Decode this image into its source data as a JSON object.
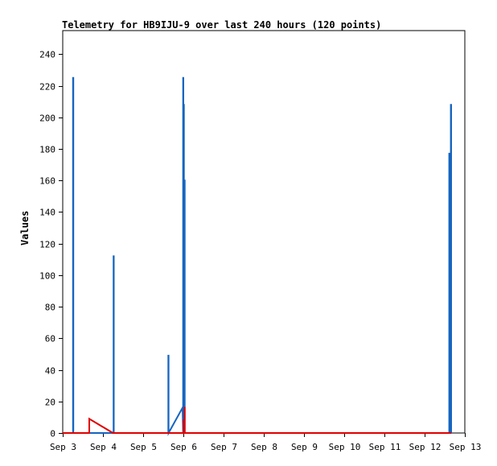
{
  "chart_data": {
    "type": "line",
    "title": "Telemetry for HB9IJU-9 over last 240 hours (120 points)",
    "xlabel": "",
    "ylabel": "Values",
    "x_ticks": [
      "Sep 3",
      "Sep 4",
      "Sep 5",
      "Sep 6",
      "Sep 7",
      "Sep 8",
      "Sep 9",
      "Sep 10",
      "Sep 11",
      "Sep 12",
      "Sep 13"
    ],
    "x_range": [
      "2024-09-03T00:00",
      "2024-09-13T00:00"
    ],
    "y_ticks": [
      0,
      20,
      40,
      60,
      80,
      100,
      120,
      140,
      160,
      180,
      200,
      220,
      240
    ],
    "ylim": [
      0,
      255
    ],
    "grid": false,
    "series": [
      {
        "color": "#1565c0",
        "points": [
          [
            "2024-09-03T00:00",
            0
          ],
          [
            "2024-09-03T06:10",
            0
          ],
          [
            "2024-09-03T06:10",
            225
          ],
          [
            "2024-09-03T06:20",
            225
          ],
          [
            "2024-09-03T06:20",
            0
          ],
          [
            "2024-09-04T06:20",
            0
          ],
          [
            "2024-09-04T06:20",
            112
          ],
          [
            "2024-09-04T06:30",
            112
          ],
          [
            "2024-09-04T06:30",
            0
          ],
          [
            "2024-09-05T15:00",
            0
          ],
          [
            "2024-09-05T15:00",
            49
          ],
          [
            "2024-09-05T15:10",
            49
          ],
          [
            "2024-09-05T15:10",
            0
          ],
          [
            "2024-09-05T23:30",
            16
          ],
          [
            "2024-09-05T23:50",
            0
          ],
          [
            "2024-09-05T23:50",
            225
          ],
          [
            "2024-09-06T00:00",
            225
          ],
          [
            "2024-09-06T00:00",
            0
          ],
          [
            "2024-09-06T00:10",
            0
          ],
          [
            "2024-09-06T00:10",
            208
          ],
          [
            "2024-09-06T00:20",
            208
          ],
          [
            "2024-09-06T00:20",
            0
          ],
          [
            "2024-09-06T00:40",
            0
          ],
          [
            "2024-09-06T00:40",
            160
          ],
          [
            "2024-09-06T00:50",
            160
          ],
          [
            "2024-09-06T00:50",
            0
          ],
          [
            "2024-09-12T14:40",
            0
          ],
          [
            "2024-09-12T14:40",
            177
          ],
          [
            "2024-09-12T14:50",
            177
          ],
          [
            "2024-09-12T14:50",
            0
          ],
          [
            "2024-09-12T15:10",
            0
          ],
          [
            "2024-09-12T15:10",
            128
          ],
          [
            "2024-09-12T15:20",
            128
          ],
          [
            "2024-09-12T15:20",
            0
          ],
          [
            "2024-09-12T15:40",
            0
          ],
          [
            "2024-09-12T15:40",
            208
          ],
          [
            "2024-09-12T15:50",
            208
          ],
          [
            "2024-09-12T15:50",
            0
          ]
        ]
      },
      {
        "color": "#e00000",
        "points": [
          [
            "2024-09-03T00:00",
            0
          ],
          [
            "2024-09-03T15:50",
            0
          ],
          [
            "2024-09-03T15:50",
            9
          ],
          [
            "2024-09-04T06:00",
            0
          ],
          [
            "2024-09-06T00:10",
            0
          ],
          [
            "2024-09-06T00:10",
            8
          ],
          [
            "2024-09-06T00:30",
            8
          ],
          [
            "2024-09-06T00:30",
            0
          ],
          [
            "2024-09-06T00:40",
            0
          ],
          [
            "2024-09-06T00:40",
            16
          ],
          [
            "2024-09-06T00:50",
            16
          ],
          [
            "2024-09-06T00:50",
            0
          ],
          [
            "2024-09-12T15:50",
            0
          ]
        ]
      }
    ]
  }
}
